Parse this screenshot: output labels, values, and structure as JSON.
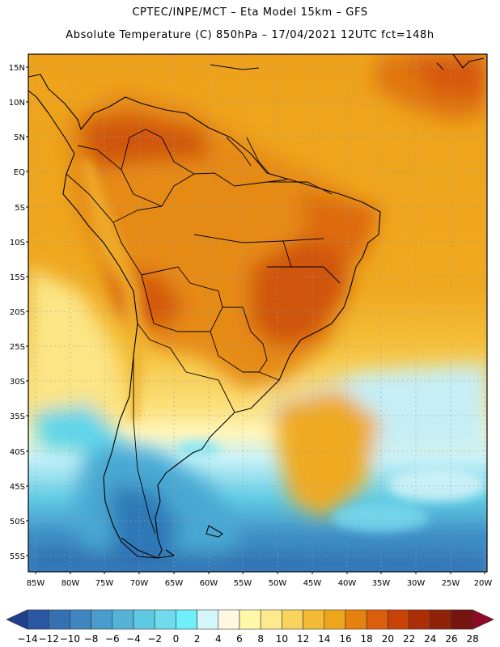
{
  "header": {
    "line1": "CPTEC/INPE/MCT –  Eta Model 15km – GFS",
    "line2": "Absolute Temperature (C) 850hPa – 17/04/2021 12UTC fct=148h"
  },
  "map": {
    "lat_labels": [
      "15N",
      "10N",
      "5N",
      "EQ",
      "5S",
      "10S",
      "15S",
      "20S",
      "25S",
      "30S",
      "35S",
      "40S",
      "45S",
      "50S",
      "55S"
    ],
    "lon_labels": [
      "85W",
      "80W",
      "75W",
      "70W",
      "65W",
      "60W",
      "55W",
      "50W",
      "45W",
      "40W",
      "35W",
      "30W",
      "25W",
      "20W"
    ]
  },
  "colorbar": {
    "levels": [
      "-14",
      "-12",
      "-10",
      "-8",
      "-6",
      "-4",
      "-2",
      "0",
      "2",
      "4",
      "6",
      "8",
      "10",
      "12",
      "14",
      "16",
      "18",
      "20",
      "22",
      "24",
      "26",
      "28"
    ],
    "colors": [
      "#1f3f8f",
      "#2a57a2",
      "#3570b2",
      "#3f86c0",
      "#4a9ccc",
      "#56b3d8",
      "#5fc9e4",
      "#6fdcee",
      "#6ff0f8",
      "#d2f6fa",
      "#fff7e0",
      "#fff8a8",
      "#fde98e",
      "#f8d35e",
      "#f3bb35",
      "#eda51c",
      "#e68110",
      "#dc5d0b",
      "#c94208",
      "#ab2e07",
      "#8f2208",
      "#74160f",
      "#8e0a26"
    ]
  }
}
